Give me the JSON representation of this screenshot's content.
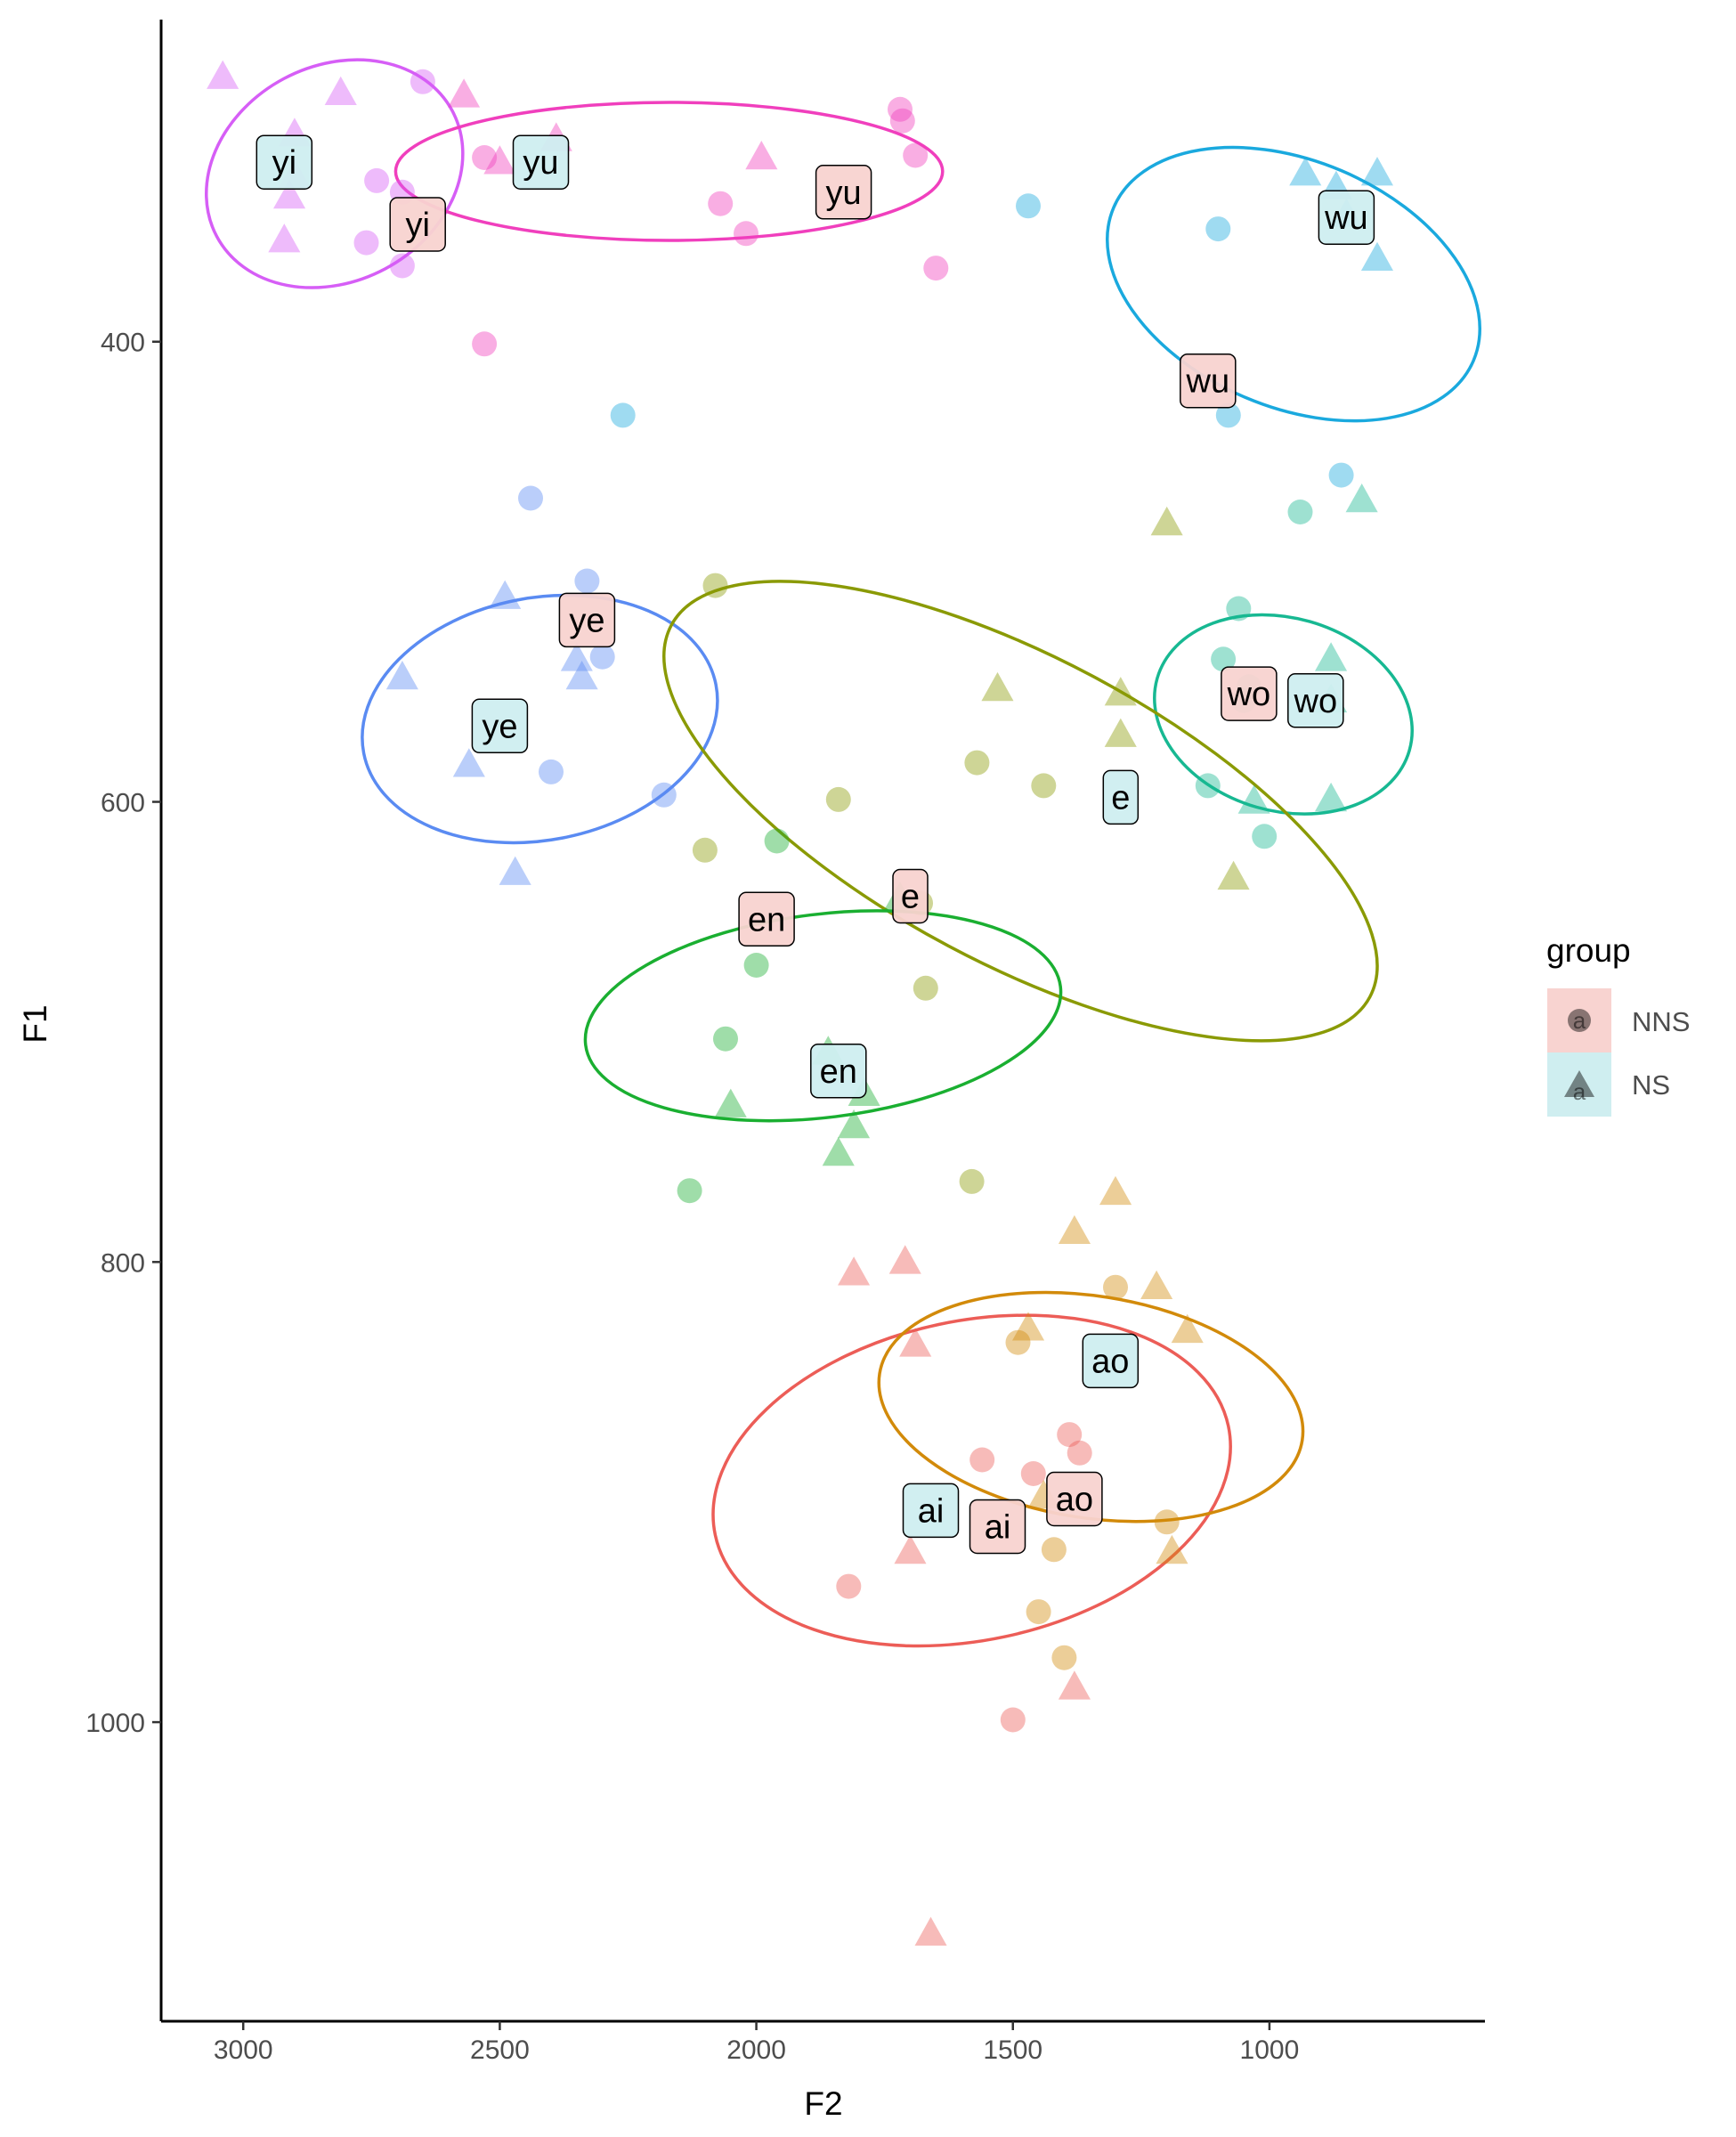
{
  "chart_data": {
    "type": "scatter",
    "xlabel": "F2",
    "ylabel": "F1",
    "x_reversed": true,
    "y_reversed": true,
    "xlim": [
      3160,
      580
    ],
    "ylim": [
      260,
      1130
    ],
    "x_ticks": [
      3000,
      2500,
      2000,
      1500,
      1000
    ],
    "y_ticks": [
      400,
      600,
      800,
      1000
    ],
    "grid": false,
    "legend": {
      "title": "group",
      "position": "right",
      "entries": [
        {
          "group": "NNS",
          "label": "NNS",
          "shape": "circle",
          "fill": "#f8d3d0"
        },
        {
          "group": "NS",
          "label": "NS",
          "shape": "triangle",
          "fill": "#cfeef0"
        }
      ],
      "key_glyph_text": "a"
    },
    "vowels": [
      {
        "name": "yi",
        "color": "#d65ef6"
      },
      {
        "name": "yu",
        "color": "#f03fbd"
      },
      {
        "name": "wu",
        "color": "#1aa9de"
      },
      {
        "name": "ye",
        "color": "#5a8bf2"
      },
      {
        "name": "wo",
        "color": "#17b892"
      },
      {
        "name": "e",
        "color": "#8a9a05"
      },
      {
        "name": "en",
        "color": "#1aaf31"
      },
      {
        "name": "ai",
        "color": "#ec5d57"
      },
      {
        "name": "ao",
        "color": "#d28a0a"
      }
    ],
    "points": [
      {
        "vowel": "yi",
        "group": "NS",
        "x": 3040,
        "y": 285
      },
      {
        "vowel": "yi",
        "group": "NS",
        "x": 2810,
        "y": 292
      },
      {
        "vowel": "yi",
        "group": "NS",
        "x": 2900,
        "y": 310
      },
      {
        "vowel": "yi",
        "group": "NS",
        "x": 2900,
        "y": 328
      },
      {
        "vowel": "yi",
        "group": "NS",
        "x": 2910,
        "y": 337
      },
      {
        "vowel": "yi",
        "group": "NS",
        "x": 2920,
        "y": 356
      },
      {
        "vowel": "yi",
        "group": "NNS",
        "x": 2650,
        "y": 287
      },
      {
        "vowel": "yi",
        "group": "NNS",
        "x": 2740,
        "y": 330
      },
      {
        "vowel": "yi",
        "group": "NNS",
        "x": 2760,
        "y": 357
      },
      {
        "vowel": "yi",
        "group": "NNS",
        "x": 2690,
        "y": 367
      },
      {
        "vowel": "yi",
        "group": "NNS",
        "x": 2690,
        "y": 335
      },
      {
        "vowel": "yu",
        "group": "NS",
        "x": 2570,
        "y": 293
      },
      {
        "vowel": "yu",
        "group": "NS",
        "x": 2500,
        "y": 322
      },
      {
        "vowel": "yu",
        "group": "NS",
        "x": 2390,
        "y": 312
      },
      {
        "vowel": "yu",
        "group": "NS",
        "x": 1990,
        "y": 320
      },
      {
        "vowel": "yu",
        "group": "NNS",
        "x": 2530,
        "y": 320
      },
      {
        "vowel": "yu",
        "group": "NNS",
        "x": 1720,
        "y": 299
      },
      {
        "vowel": "yu",
        "group": "NNS",
        "x": 1715,
        "y": 304
      },
      {
        "vowel": "yu",
        "group": "NNS",
        "x": 1690,
        "y": 319
      },
      {
        "vowel": "yu",
        "group": "NNS",
        "x": 2070,
        "y": 340
      },
      {
        "vowel": "yu",
        "group": "NNS",
        "x": 2020,
        "y": 353
      },
      {
        "vowel": "yu",
        "group": "NNS",
        "x": 1650,
        "y": 368
      },
      {
        "vowel": "yu",
        "group": "NNS",
        "x": 2530,
        "y": 401
      },
      {
        "vowel": "wu",
        "group": "NS",
        "x": 930,
        "y": 327
      },
      {
        "vowel": "wu",
        "group": "NS",
        "x": 870,
        "y": 333
      },
      {
        "vowel": "wu",
        "group": "NS",
        "x": 850,
        "y": 345
      },
      {
        "vowel": "wu",
        "group": "NS",
        "x": 790,
        "y": 327
      },
      {
        "vowel": "wu",
        "group": "NS",
        "x": 790,
        "y": 364
      },
      {
        "vowel": "wu",
        "group": "NNS",
        "x": 1100,
        "y": 351
      },
      {
        "vowel": "wu",
        "group": "NNS",
        "x": 1080,
        "y": 432
      },
      {
        "vowel": "wu",
        "group": "NNS",
        "x": 860,
        "y": 458
      },
      {
        "vowel": "wu",
        "group": "NNS",
        "x": 1470,
        "y": 341
      },
      {
        "vowel": "wu",
        "group": "NNS",
        "x": 2260,
        "y": 432
      },
      {
        "vowel": "ye",
        "group": "NS",
        "x": 2490,
        "y": 511
      },
      {
        "vowel": "ye",
        "group": "NS",
        "x": 2690,
        "y": 546
      },
      {
        "vowel": "ye",
        "group": "NS",
        "x": 2350,
        "y": 538
      },
      {
        "vowel": "ye",
        "group": "NS",
        "x": 2340,
        "y": 546
      },
      {
        "vowel": "ye",
        "group": "NS",
        "x": 2560,
        "y": 584
      },
      {
        "vowel": "ye",
        "group": "NS",
        "x": 2470,
        "y": 631
      },
      {
        "vowel": "ye",
        "group": "NNS",
        "x": 2440,
        "y": 468
      },
      {
        "vowel": "ye",
        "group": "NNS",
        "x": 2330,
        "y": 504
      },
      {
        "vowel": "ye",
        "group": "NNS",
        "x": 2300,
        "y": 537
      },
      {
        "vowel": "ye",
        "group": "NNS",
        "x": 2400,
        "y": 587
      },
      {
        "vowel": "ye",
        "group": "NNS",
        "x": 2180,
        "y": 597
      },
      {
        "vowel": "wo",
        "group": "NS",
        "x": 820,
        "y": 469
      },
      {
        "vowel": "wo",
        "group": "NS",
        "x": 880,
        "y": 538
      },
      {
        "vowel": "wo",
        "group": "NS",
        "x": 880,
        "y": 556
      },
      {
        "vowel": "wo",
        "group": "NS",
        "x": 880,
        "y": 599
      },
      {
        "vowel": "wo",
        "group": "NS",
        "x": 1030,
        "y": 600
      },
      {
        "vowel": "wo",
        "group": "NNS",
        "x": 940,
        "y": 474
      },
      {
        "vowel": "wo",
        "group": "NNS",
        "x": 1060,
        "y": 516
      },
      {
        "vowel": "wo",
        "group": "NNS",
        "x": 1090,
        "y": 538
      },
      {
        "vowel": "wo",
        "group": "NNS",
        "x": 1040,
        "y": 550
      },
      {
        "vowel": "wo",
        "group": "NNS",
        "x": 1050,
        "y": 556
      },
      {
        "vowel": "wo",
        "group": "NNS",
        "x": 1120,
        "y": 593
      },
      {
        "vowel": "wo",
        "group": "NNS",
        "x": 1010,
        "y": 615
      },
      {
        "vowel": "e",
        "group": "NS",
        "x": 1200,
        "y": 479
      },
      {
        "vowel": "e",
        "group": "NS",
        "x": 1530,
        "y": 551
      },
      {
        "vowel": "e",
        "group": "NS",
        "x": 1290,
        "y": 553
      },
      {
        "vowel": "e",
        "group": "NS",
        "x": 1290,
        "y": 571
      },
      {
        "vowel": "e",
        "group": "NS",
        "x": 1070,
        "y": 633
      },
      {
        "vowel": "e",
        "group": "NNS",
        "x": 2080,
        "y": 506
      },
      {
        "vowel": "e",
        "group": "NNS",
        "x": 1570,
        "y": 583
      },
      {
        "vowel": "e",
        "group": "NNS",
        "x": 1440,
        "y": 593
      },
      {
        "vowel": "e",
        "group": "NNS",
        "x": 1840,
        "y": 599
      },
      {
        "vowel": "e",
        "group": "NNS",
        "x": 1680,
        "y": 644
      },
      {
        "vowel": "e",
        "group": "NNS",
        "x": 1670,
        "y": 681
      },
      {
        "vowel": "e",
        "group": "NNS",
        "x": 2100,
        "y": 621
      },
      {
        "vowel": "e",
        "group": "NNS",
        "x": 1580,
        "y": 765
      },
      {
        "vowel": "en",
        "group": "NS",
        "x": 1720,
        "y": 642
      },
      {
        "vowel": "en",
        "group": "NS",
        "x": 1860,
        "y": 709
      },
      {
        "vowel": "en",
        "group": "NS",
        "x": 2050,
        "y": 732
      },
      {
        "vowel": "en",
        "group": "NS",
        "x": 1790,
        "y": 727
      },
      {
        "vowel": "en",
        "group": "NS",
        "x": 1810,
        "y": 741
      },
      {
        "vowel": "en",
        "group": "NS",
        "x": 1840,
        "y": 753
      },
      {
        "vowel": "en",
        "group": "NNS",
        "x": 1960,
        "y": 617
      },
      {
        "vowel": "en",
        "group": "NNS",
        "x": 2000,
        "y": 671
      },
      {
        "vowel": "en",
        "group": "NNS",
        "x": 2060,
        "y": 703
      },
      {
        "vowel": "en",
        "group": "NNS",
        "x": 2130,
        "y": 769
      },
      {
        "vowel": "ai",
        "group": "NS",
        "x": 1810,
        "y": 805
      },
      {
        "vowel": "ai",
        "group": "NS",
        "x": 1710,
        "y": 800
      },
      {
        "vowel": "ai",
        "group": "NS",
        "x": 1690,
        "y": 836
      },
      {
        "vowel": "ai",
        "group": "NS",
        "x": 1700,
        "y": 926
      },
      {
        "vowel": "ai",
        "group": "NS",
        "x": 1380,
        "y": 985
      },
      {
        "vowel": "ai",
        "group": "NS",
        "x": 1660,
        "y": 1092
      },
      {
        "vowel": "ai",
        "group": "NNS",
        "x": 1390,
        "y": 875
      },
      {
        "vowel": "ai",
        "group": "NNS",
        "x": 1370,
        "y": 883
      },
      {
        "vowel": "ai",
        "group": "NNS",
        "x": 1560,
        "y": 886
      },
      {
        "vowel": "ai",
        "group": "NNS",
        "x": 1460,
        "y": 892
      },
      {
        "vowel": "ai",
        "group": "NNS",
        "x": 1820,
        "y": 941
      },
      {
        "vowel": "ai",
        "group": "NNS",
        "x": 1500,
        "y": 999
      },
      {
        "vowel": "ao",
        "group": "NS",
        "x": 1300,
        "y": 770
      },
      {
        "vowel": "ao",
        "group": "NS",
        "x": 1380,
        "y": 787
      },
      {
        "vowel": "ao",
        "group": "NS",
        "x": 1220,
        "y": 811
      },
      {
        "vowel": "ao",
        "group": "NS",
        "x": 1470,
        "y": 829
      },
      {
        "vowel": "ao",
        "group": "NS",
        "x": 1160,
        "y": 830
      },
      {
        "vowel": "ao",
        "group": "NS",
        "x": 1440,
        "y": 902
      },
      {
        "vowel": "ao",
        "group": "NS",
        "x": 1190,
        "y": 926
      },
      {
        "vowel": "ao",
        "group": "NNS",
        "x": 1300,
        "y": 811
      },
      {
        "vowel": "ao",
        "group": "NNS",
        "x": 1490,
        "y": 835
      },
      {
        "vowel": "ao",
        "group": "NNS",
        "x": 1200,
        "y": 913
      },
      {
        "vowel": "ao",
        "group": "NNS",
        "x": 1420,
        "y": 925
      },
      {
        "vowel": "ao",
        "group": "NNS",
        "x": 1450,
        "y": 952
      },
      {
        "vowel": "ao",
        "group": "NNS",
        "x": 1400,
        "y": 972
      }
    ],
    "ellipses": [
      {
        "vowel": "yi",
        "group": "NNS",
        "cx": 2822,
        "cy": 327,
        "ry": 58,
        "rx": 210,
        "angle": 62
      },
      {
        "vowel": "yu",
        "group": "NNS",
        "cx": 2170,
        "cy": 326,
        "ry": 30,
        "rx": 533,
        "angle": 0
      },
      {
        "vowel": "wu",
        "group": "NS",
        "cx": 953,
        "cy": 375,
        "ry": 85,
        "rx": 240,
        "angle": -67
      },
      {
        "vowel": "ye",
        "group": "NS",
        "cx": 2422,
        "cy": 564,
        "ry": 78,
        "rx": 236,
        "angle": 79
      },
      {
        "vowel": "wo",
        "group": "NS",
        "cx": 973,
        "cy": 562,
        "ry": 57,
        "rx": 188,
        "angle": -74
      },
      {
        "vowel": "e",
        "group": "NNS",
        "cx": 1485,
        "cy": 604,
        "ry": 172,
        "rx": 298,
        "angle": -62
      },
      {
        "vowel": "en",
        "group": "NS",
        "cx": 1870,
        "cy": 693,
        "ry": 104,
        "rx": 198,
        "angle": 83
      },
      {
        "vowel": "ai",
        "group": "NNS",
        "cx": 1580,
        "cy": 895,
        "ry": 114,
        "rx": 311,
        "angle": 78
      },
      {
        "vowel": "ao",
        "group": "NS",
        "cx": 1348,
        "cy": 863,
        "ry": 93,
        "rx": 216,
        "angle": -81
      }
    ],
    "labels": [
      {
        "text": "yi",
        "group": "NS",
        "x": 2920,
        "y": 322
      },
      {
        "text": "yi",
        "group": "NNS",
        "x": 2660,
        "y": 349
      },
      {
        "text": "yu",
        "group": "NS",
        "x": 2420,
        "y": 322
      },
      {
        "text": "yu",
        "group": "NNS",
        "x": 1830,
        "y": 335
      },
      {
        "text": "wu",
        "group": "NS",
        "x": 850,
        "y": 346
      },
      {
        "text": "wu",
        "group": "NNS",
        "x": 1120,
        "y": 417
      },
      {
        "text": "ye",
        "group": "NNS",
        "x": 2330,
        "y": 521
      },
      {
        "text": "ye",
        "group": "NS",
        "x": 2500,
        "y": 567
      },
      {
        "text": "wo",
        "group": "NNS",
        "x": 1040,
        "y": 553
      },
      {
        "text": "wo",
        "group": "NS",
        "x": 910,
        "y": 556
      },
      {
        "text": "e",
        "group": "NS",
        "x": 1290,
        "y": 598
      },
      {
        "text": "e",
        "group": "NNS",
        "x": 1700,
        "y": 641
      },
      {
        "text": "en",
        "group": "NNS",
        "x": 1980,
        "y": 651
      },
      {
        "text": "en",
        "group": "NS",
        "x": 1840,
        "y": 717
      },
      {
        "text": "ao",
        "group": "NS",
        "x": 1310,
        "y": 843
      },
      {
        "text": "ao",
        "group": "NNS",
        "x": 1380,
        "y": 903
      },
      {
        "text": "ai",
        "group": "NS",
        "x": 1660,
        "y": 908
      },
      {
        "text": "ai",
        "group": "NNS",
        "x": 1530,
        "y": 915
      }
    ]
  }
}
